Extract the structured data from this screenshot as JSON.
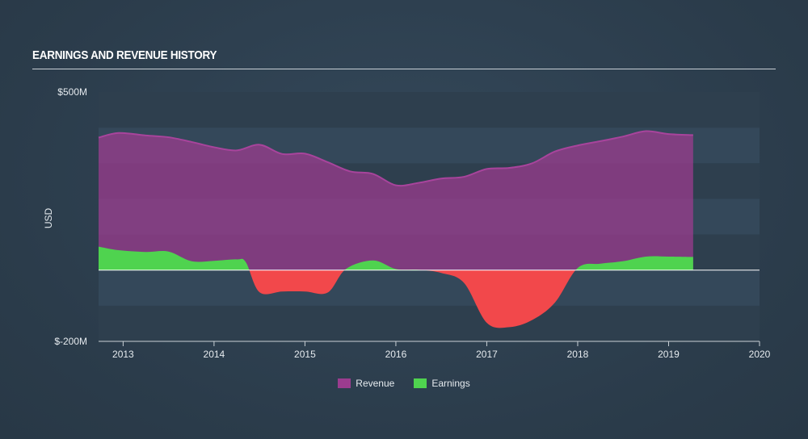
{
  "title": "EARNINGS AND REVENUE HISTORY",
  "chart_data": {
    "type": "area",
    "ylabel": "USD",
    "ylim": [
      -200,
      500
    ],
    "y_tick_labels": [
      "$500M",
      "$-200M"
    ],
    "xlim": [
      2012.73,
      2020.0
    ],
    "x_tick_labels": [
      "2013",
      "2014",
      "2015",
      "2016",
      "2017",
      "2018",
      "2019",
      "2020"
    ],
    "colors": {
      "revenue": "#9b3c8f",
      "earnings_positive": "#4fd34f",
      "earnings_negative": "#f2484b"
    },
    "series": [
      {
        "name": "Revenue",
        "points": [
          [
            2012.73,
            372
          ],
          [
            2012.95,
            385
          ],
          [
            2013.25,
            378
          ],
          [
            2013.5,
            373
          ],
          [
            2013.75,
            360
          ],
          [
            2014.0,
            345
          ],
          [
            2014.25,
            336
          ],
          [
            2014.5,
            352
          ],
          [
            2014.75,
            326
          ],
          [
            2015.0,
            327
          ],
          [
            2015.25,
            303
          ],
          [
            2015.5,
            277
          ],
          [
            2015.75,
            270
          ],
          [
            2016.0,
            238
          ],
          [
            2016.25,
            245
          ],
          [
            2016.5,
            257
          ],
          [
            2016.75,
            262
          ],
          [
            2017.0,
            284
          ],
          [
            2017.25,
            287
          ],
          [
            2017.5,
            300
          ],
          [
            2017.75,
            333
          ],
          [
            2018.0,
            350
          ],
          [
            2018.25,
            362
          ],
          [
            2018.5,
            375
          ],
          [
            2018.75,
            390
          ],
          [
            2019.0,
            382
          ],
          [
            2019.27,
            379
          ]
        ]
      },
      {
        "name": "Earnings",
        "points": [
          [
            2012.73,
            66
          ],
          [
            2012.95,
            56
          ],
          [
            2013.25,
            51
          ],
          [
            2013.5,
            52
          ],
          [
            2013.75,
            25
          ],
          [
            2014.0,
            26
          ],
          [
            2014.25,
            30
          ],
          [
            2014.35,
            22
          ],
          [
            2014.5,
            -62
          ],
          [
            2014.75,
            -60
          ],
          [
            2015.0,
            -60
          ],
          [
            2015.25,
            -63
          ],
          [
            2015.45,
            3
          ],
          [
            2015.75,
            27
          ],
          [
            2016.0,
            3
          ],
          [
            2016.25,
            1
          ],
          [
            2016.5,
            -8
          ],
          [
            2016.75,
            -36
          ],
          [
            2017.0,
            -148
          ],
          [
            2017.25,
            -160
          ],
          [
            2017.5,
            -140
          ],
          [
            2017.75,
            -91
          ],
          [
            2018.0,
            6
          ],
          [
            2018.25,
            18
          ],
          [
            2018.5,
            25
          ],
          [
            2018.75,
            38
          ],
          [
            2019.0,
            38
          ],
          [
            2019.27,
            37
          ]
        ]
      }
    ]
  }
}
